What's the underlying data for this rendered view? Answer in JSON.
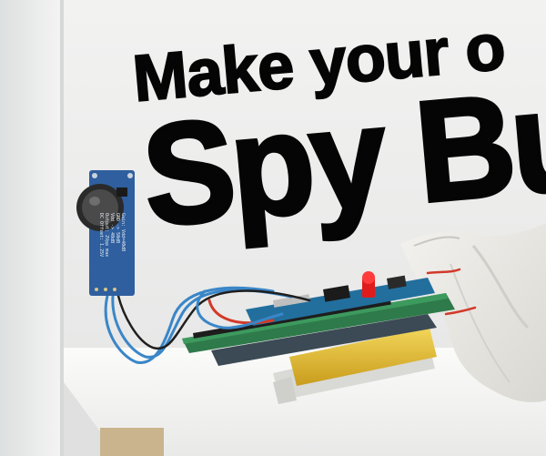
{
  "headline": {
    "line1": "Make your o",
    "line2": "Spy Bu"
  },
  "mic_module_labels": [
    "Gain: Vdd=40dB",
    "GND -> 50dB",
    "Vdd -> 40dB",
    "Output: 2Vpp max",
    "DC Offset: 1.25V"
  ],
  "colors": {
    "wall": "#eeeeed",
    "shelf": "#f7f7f6",
    "text": "#050505",
    "mic_board": "#2f5f9e",
    "pcb": "#2f7a4a",
    "battery": "#e8c23a",
    "cloth": "#ecebe6",
    "wire_blue": "#3a86c8",
    "wire_red": "#d23a2a",
    "led": "#e01b1b"
  }
}
